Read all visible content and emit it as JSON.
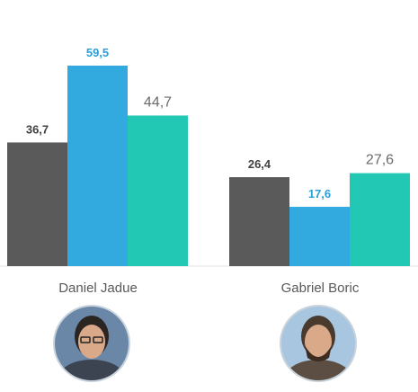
{
  "chart_data": {
    "type": "bar",
    "categories": [
      "Daniel Jadue",
      "Gabriel Boric"
    ],
    "series": [
      {
        "values": [
          36.7,
          26.4
        ],
        "color": "#5a5a5a",
        "labels": [
          "36,7",
          "26,4"
        ],
        "label_color": "#404040",
        "label_bold": true
      },
      {
        "values": [
          59.5,
          17.6
        ],
        "color": "#33aadf",
        "labels": [
          "59,5",
          "17,6"
        ],
        "label_color": "#2a9fd8",
        "label_bold": true
      },
      {
        "values": [
          44.7,
          27.6
        ],
        "color": "#22c8b4",
        "labels": [
          "44,7",
          "27,6"
        ],
        "label_color": "#6b6b6b",
        "label_bold": false
      }
    ],
    "ylim": [
      0,
      59.5
    ],
    "grid": false,
    "legend": "none",
    "title": "",
    "xlabel": "",
    "ylabel": ""
  },
  "photos": [
    {
      "icon": "portrait-photo",
      "tone": "#6b87a8"
    },
    {
      "icon": "portrait-photo",
      "tone": "#a9c6e0"
    }
  ]
}
